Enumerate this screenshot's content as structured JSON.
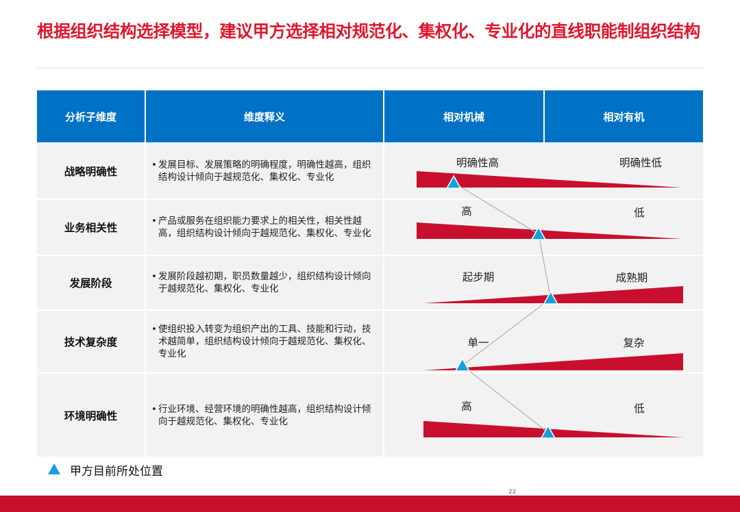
{
  "title": "根据组织结构选择模型，建议甲方选择相对规范化、集权化、专业化的直线职能制组织结构",
  "table": {
    "headers": [
      "分析子维度",
      "维度释义",
      "相对机械",
      "相对有机"
    ],
    "rows": [
      {
        "dimension": "战略明确性",
        "description": "发展目标、发展策略的明确程度，明确性越高，组织结构设计倾向于越规范化、集权化、专业化",
        "left_label": "明确性高",
        "right_label": "明确性低",
        "wedge_thick_side": "left",
        "position": 0.14
      },
      {
        "dimension": "业务相关性",
        "description": "产品或服务在组织能力要求上的相关性，相关性越高，组织结构设计倾向于越规范化、集权化、专业化",
        "left_label": "高",
        "right_label": "低",
        "wedge_thick_side": "left",
        "position": 0.46
      },
      {
        "dimension": "发展阶段",
        "description": "发展阶段越初期，职员数量越少，组织结构设计倾向于越规范化、集权化、专业化",
        "left_label": "起步期",
        "right_label": "成熟期",
        "wedge_thick_side": "right",
        "position": 0.49
      },
      {
        "dimension": "技术复杂度",
        "description": "使组织投入转变为组织产出的工具、技能和行动，技术越简单，组织结构设计倾向于越规范化、集权化、专业化",
        "left_label": "单一",
        "right_label": "复杂",
        "wedge_thick_side": "right",
        "position": 0.15
      },
      {
        "dimension": "环境明确性",
        "description": "行业环境、经营环境的明确性越高，组织结构设计倾向于越规范化、集权化、专业化",
        "left_label": "高",
        "right_label": "低",
        "wedge_thick_side": "left",
        "position": 0.48
      }
    ]
  },
  "legend": {
    "label": "甲方目前所处位置",
    "marker_color": "#14a0e0"
  },
  "page_number": "22",
  "colors": {
    "title": "#e0142a",
    "header": "#0072c6",
    "wedge": "#c8102e",
    "marker": "#14a0e0",
    "footer": "#c8102e"
  }
}
